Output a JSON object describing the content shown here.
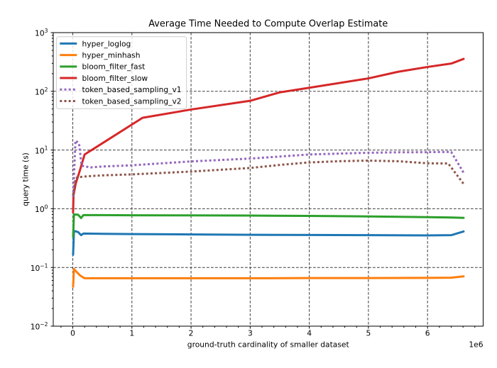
{
  "chart_data": {
    "type": "line",
    "title": "Average Time Needed to Compute Overlap Estimate",
    "xlabel": "ground-truth cardinality of smaller dataset",
    "ylabel": "query time (s)",
    "x_offset_label": "1e6",
    "x_scale": "linear",
    "y_scale": "log",
    "xlim": [
      -330500,
      6940500
    ],
    "ylim": [
      0.01,
      1000
    ],
    "x_ticks": [
      0,
      1000000,
      2000000,
      3000000,
      4000000,
      5000000,
      6000000
    ],
    "x_tick_labels": [
      "0",
      "1",
      "2",
      "3",
      "4",
      "5",
      "6"
    ],
    "x_minor_tick_step": 200000,
    "y_tick_exponents": [
      -2,
      -1,
      0,
      1,
      2,
      3
    ],
    "grid": {
      "on": true,
      "color": "#3d3d3d",
      "dash": [
        3.7,
        2.3
      ],
      "width": 1
    },
    "legend": {
      "position": "upper left",
      "border_color": "#cccccc",
      "background": "#ffffff"
    },
    "series": [
      {
        "name": "hyper_loglog",
        "color": "#1f77b4",
        "style": "solid",
        "points": [
          [
            5000,
            0.165
          ],
          [
            20000,
            0.42
          ],
          [
            90000,
            0.4
          ],
          [
            140000,
            0.355
          ],
          [
            180000,
            0.378
          ],
          [
            500000,
            0.374
          ],
          [
            1000000,
            0.37
          ],
          [
            2000000,
            0.365
          ],
          [
            3000000,
            0.36
          ],
          [
            4000000,
            0.358
          ],
          [
            5000000,
            0.355
          ],
          [
            6000000,
            0.352
          ],
          [
            6400000,
            0.355
          ],
          [
            6610000,
            0.41
          ]
        ]
      },
      {
        "name": "hyper_minhash",
        "color": "#ff7f0e",
        "style": "solid",
        "points": [
          [
            5000,
            0.047
          ],
          [
            20000,
            0.094
          ],
          [
            60000,
            0.085
          ],
          [
            130000,
            0.072
          ],
          [
            200000,
            0.0655
          ],
          [
            1000000,
            0.0655
          ],
          [
            2000000,
            0.0655
          ],
          [
            3000000,
            0.0655
          ],
          [
            4000000,
            0.066
          ],
          [
            5000000,
            0.066
          ],
          [
            6000000,
            0.0665
          ],
          [
            6400000,
            0.067
          ],
          [
            6610000,
            0.0705
          ]
        ]
      },
      {
        "name": "bloom_filter_fast",
        "color": "#2ca02c",
        "style": "solid",
        "points": [
          [
            5000,
            0.335
          ],
          [
            20000,
            0.8
          ],
          [
            90000,
            0.79
          ],
          [
            140000,
            0.695
          ],
          [
            180000,
            0.78
          ],
          [
            500000,
            0.78
          ],
          [
            1000000,
            0.775
          ],
          [
            2000000,
            0.77
          ],
          [
            3000000,
            0.765
          ],
          [
            4000000,
            0.755
          ],
          [
            5000000,
            0.74
          ],
          [
            6000000,
            0.72
          ],
          [
            6400000,
            0.71
          ],
          [
            6610000,
            0.7
          ]
        ]
      },
      {
        "name": "bloom_filter_slow",
        "color": "#d62728",
        "style": "solid",
        "points": [
          [
            5000,
            0.87
          ],
          [
            12000,
            1.7
          ],
          [
            50000,
            2.7
          ],
          [
            120000,
            4.5
          ],
          [
            200000,
            8.4
          ],
          [
            1180000,
            35.4
          ],
          [
            2000000,
            49
          ],
          [
            3000000,
            69
          ],
          [
            3500000,
            96
          ],
          [
            4000000,
            115
          ],
          [
            5000000,
            166
          ],
          [
            5500000,
            215
          ],
          [
            6000000,
            260
          ],
          [
            6400000,
            297
          ],
          [
            6610000,
            357
          ]
        ]
      },
      {
        "name": "token_based_sampling_v1",
        "color": "#9467bd",
        "style": "dotted",
        "points": [
          [
            5000,
            1.6
          ],
          [
            45000,
            14.5
          ],
          [
            105000,
            13.0
          ],
          [
            150000,
            5.4
          ],
          [
            300000,
            5.05
          ],
          [
            500000,
            5.25
          ],
          [
            1000000,
            5.5
          ],
          [
            2000000,
            6.4
          ],
          [
            3000000,
            7.15
          ],
          [
            4000000,
            8.4
          ],
          [
            5000000,
            9.0
          ],
          [
            5500000,
            9.15
          ],
          [
            6000000,
            9.2
          ],
          [
            6400000,
            9.3
          ],
          [
            6610000,
            4.1
          ]
        ]
      },
      {
        "name": "token_based_sampling_v2",
        "color": "#8c564b",
        "style": "dotted",
        "points": [
          [
            5000,
            1.7
          ],
          [
            50000,
            3.35
          ],
          [
            150000,
            3.5
          ],
          [
            300000,
            3.6
          ],
          [
            500000,
            3.7
          ],
          [
            1000000,
            3.85
          ],
          [
            2000000,
            4.3
          ],
          [
            3000000,
            4.95
          ],
          [
            3600000,
            5.7
          ],
          [
            4000000,
            6.15
          ],
          [
            4500000,
            6.45
          ],
          [
            5000000,
            6.6
          ],
          [
            5500000,
            6.45
          ],
          [
            6000000,
            5.95
          ],
          [
            6350000,
            5.9
          ],
          [
            6610000,
            2.65
          ]
        ]
      }
    ]
  }
}
